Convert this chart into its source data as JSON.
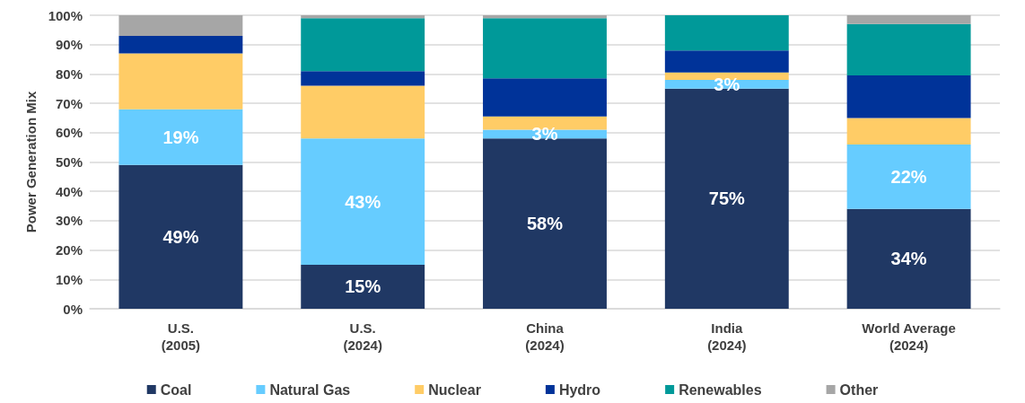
{
  "chart_data": {
    "type": "bar",
    "stacked": true,
    "ylabel": "Power Generation Mix",
    "categories": [
      "U.S.\n(2005)",
      "U.S.\n(2024)",
      "China\n(2024)",
      "India\n(2024)",
      "World Average\n(2024)"
    ],
    "series": [
      {
        "name": "Coal",
        "color": "#203864",
        "values": [
          49,
          15,
          58,
          75,
          34
        ],
        "value_labels": [
          "49%",
          "15%",
          "58%",
          "75%",
          "34%"
        ]
      },
      {
        "name": "Natural Gas",
        "color": "#66ccff",
        "values": [
          19,
          43,
          3,
          3,
          22
        ],
        "value_labels": [
          "19%",
          "43%",
          "3%",
          "3%",
          "22%"
        ]
      },
      {
        "name": "Nuclear",
        "color": "#ffcc66",
        "values": [
          19,
          18,
          4.5,
          2.5,
          9
        ]
      },
      {
        "name": "Hydro",
        "color": "#003399",
        "values": [
          6,
          5,
          13,
          7.5,
          14.5
        ]
      },
      {
        "name": "Renewables",
        "color": "#009999",
        "values": [
          0,
          18,
          20.5,
          12,
          17.5
        ]
      },
      {
        "name": "Other",
        "color": "#a6a6a6",
        "values": [
          7,
          1,
          1,
          0,
          3
        ]
      }
    ],
    "ylim": [
      0,
      100
    ],
    "yticks": [
      {
        "value": 0,
        "label": "0%"
      },
      {
        "value": 10,
        "label": "10%"
      },
      {
        "value": 20,
        "label": "20%"
      },
      {
        "value": 30,
        "label": "30%"
      },
      {
        "value": 40,
        "label": "40%"
      },
      {
        "value": 50,
        "label": "50%"
      },
      {
        "value": 60,
        "label": "60%"
      },
      {
        "value": 70,
        "label": "70%"
      },
      {
        "value": 80,
        "label": "80%"
      },
      {
        "value": 90,
        "label": "90%"
      },
      {
        "value": 100,
        "label": "100%"
      }
    ],
    "grid": "y",
    "legend": "bottom"
  }
}
